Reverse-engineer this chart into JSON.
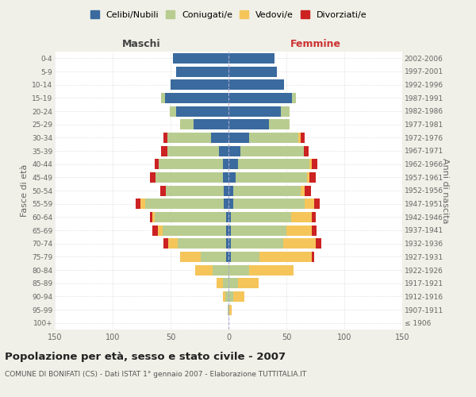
{
  "age_groups": [
    "100+",
    "95-99",
    "90-94",
    "85-89",
    "80-84",
    "75-79",
    "70-74",
    "65-69",
    "60-64",
    "55-59",
    "50-54",
    "45-49",
    "40-44",
    "35-39",
    "30-34",
    "25-29",
    "20-24",
    "15-19",
    "10-14",
    "5-9",
    "0-4"
  ],
  "birth_years": [
    "≤ 1906",
    "1907-1911",
    "1912-1916",
    "1917-1921",
    "1922-1926",
    "1927-1931",
    "1932-1936",
    "1937-1941",
    "1942-1946",
    "1947-1951",
    "1952-1956",
    "1957-1961",
    "1962-1966",
    "1967-1971",
    "1972-1976",
    "1977-1981",
    "1982-1986",
    "1987-1991",
    "1992-1996",
    "1997-2001",
    "2002-2006"
  ],
  "male_celibi": [
    0,
    0,
    0,
    0,
    0,
    2,
    2,
    2,
    2,
    4,
    4,
    5,
    5,
    8,
    15,
    30,
    45,
    55,
    50,
    45,
    48
  ],
  "male_coniugati": [
    0,
    1,
    3,
    5,
    14,
    22,
    42,
    55,
    62,
    68,
    50,
    58,
    55,
    45,
    38,
    12,
    6,
    3,
    0,
    0,
    0
  ],
  "male_vedovi": [
    0,
    0,
    2,
    5,
    15,
    18,
    8,
    4,
    2,
    4,
    0,
    0,
    0,
    0,
    0,
    0,
    0,
    0,
    0,
    0,
    0
  ],
  "male_divorziati": [
    0,
    0,
    0,
    0,
    0,
    0,
    4,
    5,
    2,
    4,
    5,
    5,
    4,
    5,
    3,
    0,
    0,
    0,
    0,
    0,
    0
  ],
  "female_nubili": [
    0,
    0,
    0,
    0,
    0,
    2,
    2,
    2,
    2,
    4,
    4,
    6,
    8,
    10,
    18,
    35,
    45,
    55,
    48,
    42,
    40
  ],
  "female_coniugate": [
    0,
    1,
    4,
    8,
    18,
    25,
    45,
    48,
    52,
    62,
    58,
    62,
    62,
    55,
    42,
    18,
    8,
    3,
    0,
    0,
    0
  ],
  "female_vedove": [
    0,
    2,
    10,
    18,
    38,
    45,
    28,
    22,
    18,
    8,
    4,
    2,
    2,
    0,
    2,
    0,
    0,
    0,
    0,
    0,
    0
  ],
  "female_divorziate": [
    0,
    0,
    0,
    0,
    0,
    2,
    5,
    4,
    3,
    5,
    5,
    5,
    5,
    4,
    4,
    0,
    0,
    0,
    0,
    0,
    0
  ],
  "colors": {
    "celibi_nubili": "#3a6a9e",
    "coniugati_e": "#b8cc90",
    "vedovi_e": "#f5c55a",
    "divorziati_e": "#cc2222"
  },
  "title": "Popolazione per età, sesso e stato civile - 2007",
  "subtitle": "COMUNE DI BONIFATI (CS) - Dati ISTAT 1° gennaio 2007 - Elaborazione TUTTITALIA.IT",
  "xlabel_left": "Maschi",
  "xlabel_right": "Femmine",
  "ylabel_left": "Fasce di età",
  "ylabel_right": "Anni di nascita",
  "xlim": 150,
  "background_color": "#f0f0e8",
  "plot_background": "#ffffff",
  "legend_labels": [
    "Celibi/Nubili",
    "Coniugati/e",
    "Vedovi/e",
    "Divorziati/e"
  ]
}
